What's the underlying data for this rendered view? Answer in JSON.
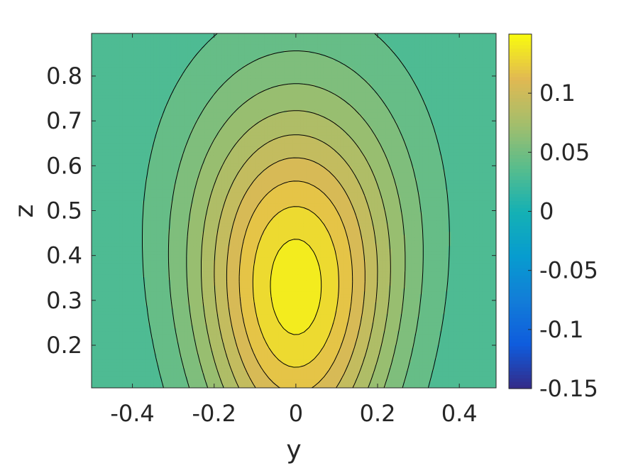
{
  "chart_data": {
    "type": "contour",
    "xlabel": "y",
    "ylabel": "z",
    "xlim": [
      -0.5,
      0.49
    ],
    "ylim": [
      0.105,
      0.895
    ],
    "xticks": [
      -0.4,
      -0.2,
      0,
      0.2,
      0.4
    ],
    "xtick_labels": [
      "-0.4",
      "-0.2",
      "0",
      "0.2",
      "0.4"
    ],
    "yticks": [
      0.2,
      0.3,
      0.4,
      0.5,
      0.6,
      0.7,
      0.8
    ],
    "ytick_labels": [
      "0.2",
      "0.3",
      "0.4",
      "0.5",
      "0.6",
      "0.7",
      "0.8"
    ],
    "colorbar": {
      "limits": [
        -0.15,
        0.15
      ],
      "ticks": [
        -0.15,
        -0.1,
        -0.05,
        0,
        0.05,
        0.1
      ],
      "tick_labels": [
        "-0.15",
        "-0.1",
        "-0.05",
        "0",
        "0.05",
        "0.1"
      ],
      "colormap": "parula"
    },
    "levels": [
      0.0375,
      0.05,
      0.0625,
      0.075,
      0.0875,
      0.1,
      0.1125,
      0.125,
      0.1375
    ],
    "field": {
      "description_values": "peak value ~0.145 near y=0, z=0.33; decays toward edges (~0.03 at y=-0.5)",
      "peak": 0.145,
      "peak_location": [
        0.0,
        0.33
      ]
    }
  }
}
